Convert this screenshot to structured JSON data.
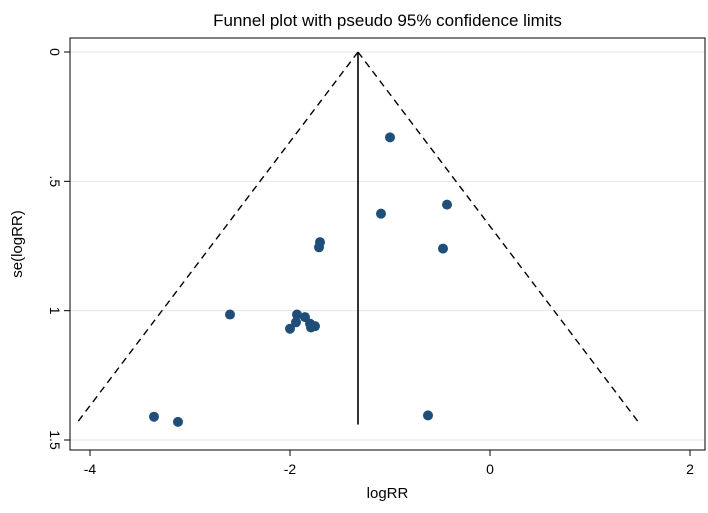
{
  "chart_data": {
    "type": "scatter",
    "title": "Funnel plot with pseudo 95% confidence limits",
    "xlabel": "logRR",
    "ylabel": "se(logRR)",
    "xlim": [
      -4.2,
      2.15
    ],
    "ylim": [
      0,
      1.5
    ],
    "y_reversed": true,
    "x_ticks": [
      -4,
      -2,
      0,
      2
    ],
    "x_tick_labels": [
      "-4",
      "-2",
      "0",
      "2"
    ],
    "y_ticks": [
      0,
      0.5,
      1,
      1.5
    ],
    "y_tick_labels": [
      "0",
      ".5",
      "1",
      "1.5"
    ],
    "grid": "horizontal",
    "pooled_estimate": -1.32,
    "confidence_limit_se_max": 1.44,
    "confidence_z": 1.96,
    "points": [
      {
        "x": -1.0,
        "y": 0.33
      },
      {
        "x": -0.43,
        "y": 0.59
      },
      {
        "x": -1.09,
        "y": 0.625
      },
      {
        "x": -1.7,
        "y": 0.735
      },
      {
        "x": -1.71,
        "y": 0.755
      },
      {
        "x": -0.47,
        "y": 0.76
      },
      {
        "x": -2.6,
        "y": 1.015
      },
      {
        "x": -1.93,
        "y": 1.015
      },
      {
        "x": -1.85,
        "y": 1.025
      },
      {
        "x": -1.94,
        "y": 1.045
      },
      {
        "x": -1.8,
        "y": 1.05
      },
      {
        "x": -1.75,
        "y": 1.06
      },
      {
        "x": -1.79,
        "y": 1.065
      },
      {
        "x": -2.0,
        "y": 1.07
      },
      {
        "x": -3.36,
        "y": 1.41
      },
      {
        "x": -0.62,
        "y": 1.405
      },
      {
        "x": -3.12,
        "y": 1.43
      }
    ],
    "colors": {
      "marker": "#1f4e79",
      "grid": "#e6e6e6",
      "axis": "#000000"
    }
  }
}
